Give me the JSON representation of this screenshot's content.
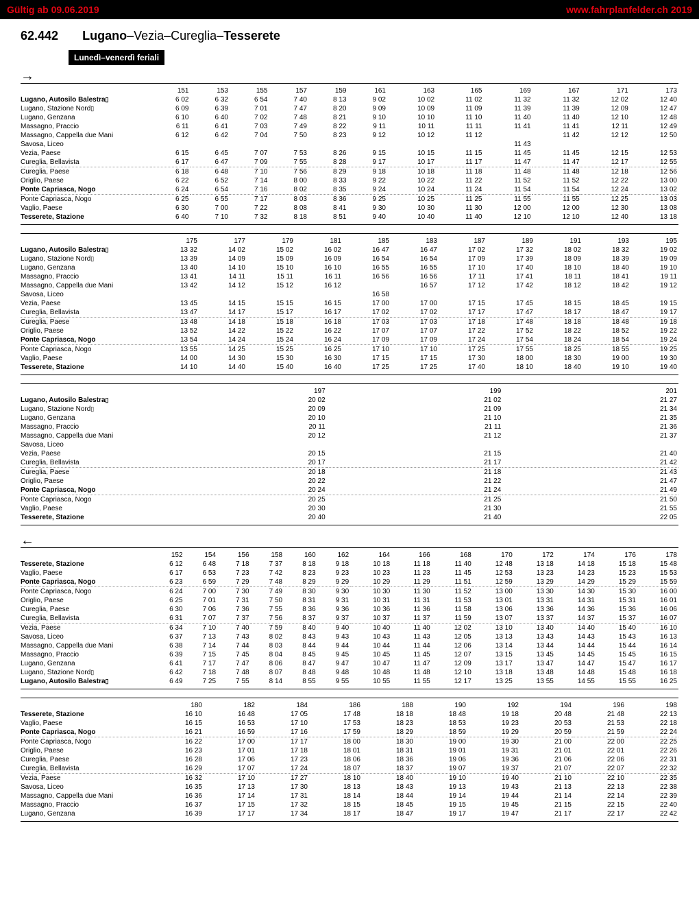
{
  "header": {
    "left_prefix": "Gültig ab ",
    "left_date": "09.06.2019",
    "right_prefix": "www.fahrplanfelder.ch ",
    "right_year": "2019"
  },
  "route": {
    "number": "62.442",
    "from": "Lugano",
    "mid": "–Vezia–Cureglia–",
    "to": "Tesserete"
  },
  "subheader": "Lunedì–venerdì feriali",
  "stops_fwd": [
    {
      "name": "Lugano, Autosilo Balestra",
      "bold": true,
      "note": "1"
    },
    {
      "name": "Lugano, Stazione Nord",
      "note": "4"
    },
    {
      "name": "Lugano, Genzana"
    },
    {
      "name": "Massagno, Praccio"
    },
    {
      "name": "Massagno, Cappella due Mani"
    },
    {
      "name": "Savosa, Liceo"
    },
    {
      "name": "Vezia, Paese"
    },
    {
      "name": "Cureglia, Bellavista"
    },
    {
      "name": "Cureglia, Paese",
      "dotted": true
    },
    {
      "name": "Origlio, Paese"
    },
    {
      "name": "Ponte Capriasca, Nogo",
      "bold": true
    },
    {
      "name": "Ponte Capriasca, Nogo",
      "dotted": true
    },
    {
      "name": "Vaglio, Paese"
    },
    {
      "name": "Tesserete, Stazione",
      "bold": true
    }
  ],
  "stops_bwd": [
    {
      "name": "Tesserete, Stazione",
      "bold": true
    },
    {
      "name": "Vaglio, Paese"
    },
    {
      "name": "Ponte Capriasca, Nogo",
      "bold": true
    },
    {
      "name": "Ponte Capriasca, Nogo",
      "dotted": true
    },
    {
      "name": "Origlio, Paese"
    },
    {
      "name": "Cureglia, Paese"
    },
    {
      "name": "Cureglia, Bellavista"
    },
    {
      "name": "Vezia, Paese",
      "dotted": true
    },
    {
      "name": "Savosa, Liceo"
    },
    {
      "name": "Massagno, Cappella due Mani"
    },
    {
      "name": "Massagno, Praccio"
    },
    {
      "name": "Lugano, Genzana"
    },
    {
      "name": "Lugano, Stazione Nord",
      "note": "4"
    },
    {
      "name": "Lugano, Autosilo Balestra",
      "bold": true,
      "note": "1"
    }
  ],
  "fwd_blocks": [
    {
      "trips": [
        "151",
        "153",
        "155",
        "157",
        "159",
        "161",
        "163",
        "165",
        "169",
        "167",
        "171",
        "173"
      ],
      "rows": [
        [
          "6 02",
          "6 32",
          "6 54",
          "7 40",
          "8 13",
          "9 02",
          "10 02",
          "11 02",
          "11 32",
          "11 32",
          "12 02",
          "12 40"
        ],
        [
          "6 09",
          "6 39",
          "7 01",
          "7 47",
          "8 20",
          "9 09",
          "10 09",
          "11 09",
          "11 39",
          "11 39",
          "12 09",
          "12 47"
        ],
        [
          "6 10",
          "6 40",
          "7 02",
          "7 48",
          "8 21",
          "9 10",
          "10 10",
          "11 10",
          "11 40",
          "11 40",
          "12 10",
          "12 48"
        ],
        [
          "6 11",
          "6 41",
          "7 03",
          "7 49",
          "8 22",
          "9 11",
          "10 11",
          "11 11",
          "11 41",
          "11 41",
          "12 11",
          "12 49"
        ],
        [
          "6 12",
          "6 42",
          "7 04",
          "7 50",
          "8 23",
          "9 12",
          "10 12",
          "11 12",
          "",
          "11 42",
          "12 12",
          "12 50"
        ],
        [
          "",
          "",
          "",
          "",
          "",
          "",
          "",
          "",
          "11 43",
          "",
          "",
          ""
        ],
        [
          "6 15",
          "6 45",
          "7 07",
          "7 53",
          "8 26",
          "9 15",
          "10 15",
          "11 15",
          "11 45",
          "11 45",
          "12 15",
          "12 53"
        ],
        [
          "6 17",
          "6 47",
          "7 09",
          "7 55",
          "8 28",
          "9 17",
          "10 17",
          "11 17",
          "11 47",
          "11 47",
          "12 17",
          "12 55"
        ],
        [
          "6 18",
          "6 48",
          "7 10",
          "7 56",
          "8 29",
          "9 18",
          "10 18",
          "11 18",
          "11 48",
          "11 48",
          "12 18",
          "12 56"
        ],
        [
          "6 22",
          "6 52",
          "7 14",
          "8 00",
          "8 33",
          "9 22",
          "10 22",
          "11 22",
          "11 52",
          "11 52",
          "12 22",
          "13 00"
        ],
        [
          "6 24",
          "6 54",
          "7 16",
          "8 02",
          "8 35",
          "9 24",
          "10 24",
          "11 24",
          "11 54",
          "11 54",
          "12 24",
          "13 02"
        ],
        [
          "6 25",
          "6 55",
          "7 17",
          "8 03",
          "8 36",
          "9 25",
          "10 25",
          "11 25",
          "11 55",
          "11 55",
          "12 25",
          "13 03"
        ],
        [
          "6 30",
          "7 00",
          "7 22",
          "8 08",
          "8 41",
          "9 30",
          "10 30",
          "11 30",
          "12 00",
          "12 00",
          "12 30",
          "13 08"
        ],
        [
          "6 40",
          "7 10",
          "7 32",
          "8 18",
          "8 51",
          "9 40",
          "10 40",
          "11 40",
          "12 10",
          "12 10",
          "12 40",
          "13 18"
        ]
      ],
      "marks": {
        "8": {
          "0": "10"
        },
        "9": {
          "0": "11"
        },
        "8b": {
          "13": "10"
        },
        "9b": {
          "13": "11"
        }
      }
    },
    {
      "trips": [
        "175",
        "177",
        "179",
        "181",
        "185",
        "183",
        "187",
        "189",
        "191",
        "193",
        "195"
      ],
      "rows": [
        [
          "13 32",
          "14 02",
          "15 02",
          "16 02",
          "16 47",
          "16 47",
          "17 02",
          "17 32",
          "18 02",
          "18 32",
          "19 02"
        ],
        [
          "13 39",
          "14 09",
          "15 09",
          "16 09",
          "16 54",
          "16 54",
          "17 09",
          "17 39",
          "18 09",
          "18 39",
          "19 09"
        ],
        [
          "13 40",
          "14 10",
          "15 10",
          "16 10",
          "16 55",
          "16 55",
          "17 10",
          "17 40",
          "18 10",
          "18 40",
          "19 10"
        ],
        [
          "13 41",
          "14 11",
          "15 11",
          "16 11",
          "16 56",
          "16 56",
          "17 11",
          "17 41",
          "18 11",
          "18 41",
          "19 11"
        ],
        [
          "13 42",
          "14 12",
          "15 12",
          "16 12",
          "",
          "16 57",
          "17 12",
          "17 42",
          "18 12",
          "18 42",
          "19 12"
        ],
        [
          "",
          "",
          "",
          "",
          "16 58",
          "",
          "",
          "",
          "",
          "",
          ""
        ],
        [
          "13 45",
          "14 15",
          "15 15",
          "16 15",
          "17 00",
          "17 00",
          "17 15",
          "17 45",
          "18 15",
          "18 45",
          "19 15"
        ],
        [
          "13 47",
          "14 17",
          "15 17",
          "16 17",
          "17 02",
          "17 02",
          "17 17",
          "17 47",
          "18 17",
          "18 47",
          "19 17"
        ],
        [
          "13 48",
          "14 18",
          "15 18",
          "16 18",
          "17 03",
          "17 03",
          "17 18",
          "17 48",
          "18 18",
          "18 48",
          "19 18"
        ],
        [
          "13 52",
          "14 22",
          "15 22",
          "16 22",
          "17 07",
          "17 07",
          "17 22",
          "17 52",
          "18 22",
          "18 52",
          "19 22"
        ],
        [
          "13 54",
          "14 24",
          "15 24",
          "16 24",
          "17 09",
          "17 09",
          "17 24",
          "17 54",
          "18 24",
          "18 54",
          "19 24"
        ],
        [
          "13 55",
          "14 25",
          "15 25",
          "16 25",
          "17 10",
          "17 10",
          "17 25",
          "17 55",
          "18 25",
          "18 55",
          "19 25"
        ],
        [
          "14 00",
          "14 30",
          "15 30",
          "16 30",
          "17 15",
          "17 15",
          "17 30",
          "18 00",
          "18 30",
          "19 00",
          "19 30"
        ],
        [
          "14 10",
          "14 40",
          "15 40",
          "16 40",
          "17 25",
          "17 25",
          "17 40",
          "18 10",
          "18 40",
          "19 10",
          "19 40"
        ]
      ]
    },
    {
      "trips": [
        "197",
        "199",
        "201"
      ],
      "rows": [
        [
          "20 02",
          "21 02",
          "21 27"
        ],
        [
          "20 09",
          "21 09",
          "21 34"
        ],
        [
          "20 10",
          "21 10",
          "21 35"
        ],
        [
          "20 11",
          "21 11",
          "21 36"
        ],
        [
          "20 12",
          "21 12",
          "21 37"
        ],
        [
          "",
          "",
          ""
        ],
        [
          "20 15",
          "21 15",
          "21 40"
        ],
        [
          "20 17",
          "21 17",
          "21 42"
        ],
        [
          "20 18",
          "21 18",
          "21 43"
        ],
        [
          "20 22",
          "21 22",
          "21 47"
        ],
        [
          "20 24",
          "21 24",
          "21 49"
        ],
        [
          "20 25",
          "21 25",
          "21 50"
        ],
        [
          "20 30",
          "21 30",
          "21 55"
        ],
        [
          "20 40",
          "21 40",
          "22 05"
        ]
      ]
    }
  ],
  "bwd_blocks": [
    {
      "trips": [
        "152",
        "154",
        "156",
        "158",
        "160",
        "162",
        "164",
        "166",
        "168",
        "170",
        "172",
        "174",
        "176",
        "178"
      ],
      "rows": [
        [
          "6 12",
          "6 48",
          "7 18",
          "7 37",
          "8 18",
          "9 18",
          "10 18",
          "11 18",
          "11 40",
          "12 48",
          "13 18",
          "14 18",
          "15 18",
          "15 48"
        ],
        [
          "6 17",
          "6 53",
          "7 23",
          "7 42",
          "8 23",
          "9 23",
          "10 23",
          "11 23",
          "11 45",
          "12 53",
          "13 23",
          "14 23",
          "15 23",
          "15 53"
        ],
        [
          "6 23",
          "6 59",
          "7 29",
          "7 48",
          "8 29",
          "9 29",
          "10 29",
          "11 29",
          "11 51",
          "12 59",
          "13 29",
          "14 29",
          "15 29",
          "15 59"
        ],
        [
          "6 24",
          "7 00",
          "7 30",
          "7 49",
          "8 30",
          "9 30",
          "10 30",
          "11 30",
          "11 52",
          "13 00",
          "13 30",
          "14 30",
          "15 30",
          "16 00"
        ],
        [
          "6 25",
          "7 01",
          "7 31",
          "7 50",
          "8 31",
          "9 31",
          "10 31",
          "11 31",
          "11 53",
          "13 01",
          "13 31",
          "14 31",
          "15 31",
          "16 01"
        ],
        [
          "6 30",
          "7 06",
          "7 36",
          "7 55",
          "8 36",
          "9 36",
          "10 36",
          "11 36",
          "11 58",
          "13 06",
          "13 36",
          "14 36",
          "15 36",
          "16 06"
        ],
        [
          "6 31",
          "7 07",
          "7 37",
          "7 56",
          "8 37",
          "9 37",
          "10 37",
          "11 37",
          "11 59",
          "13 07",
          "13 37",
          "14 37",
          "15 37",
          "16 07"
        ],
        [
          "6 34",
          "7 10",
          "7 40",
          "7 59",
          "8 40",
          "9 40",
          "10 40",
          "11 40",
          "12 02",
          "13 10",
          "13 40",
          "14 40",
          "15 40",
          "16 10"
        ],
        [
          "6 37",
          "7 13",
          "7 43",
          "8 02",
          "8 43",
          "9 43",
          "10 43",
          "11 43",
          "12 05",
          "13 13",
          "13 43",
          "14 43",
          "15 43",
          "16 13"
        ],
        [
          "6 38",
          "7 14",
          "7 44",
          "8 03",
          "8 44",
          "9 44",
          "10 44",
          "11 44",
          "12 06",
          "13 14",
          "13 44",
          "14 44",
          "15 44",
          "16 14"
        ],
        [
          "6 39",
          "7 15",
          "7 45",
          "8 04",
          "8 45",
          "9 45",
          "10 45",
          "11 45",
          "12 07",
          "13 15",
          "13 45",
          "14 45",
          "15 45",
          "16 15"
        ],
        [
          "6 41",
          "7 17",
          "7 47",
          "8 06",
          "8 47",
          "9 47",
          "10 47",
          "11 47",
          "12 09",
          "13 17",
          "13 47",
          "14 47",
          "15 47",
          "16 17"
        ],
        [
          "6 42",
          "7 18",
          "7 48",
          "8 07",
          "8 48",
          "9 48",
          "10 48",
          "11 48",
          "12 10",
          "13 18",
          "13 48",
          "14 48",
          "15 48",
          "16 18"
        ],
        [
          "6 49",
          "7 25",
          "7 55",
          "8 14",
          "8 55",
          "9 55",
          "10 55",
          "11 55",
          "12 17",
          "13 25",
          "13 55",
          "14 55",
          "15 55",
          "16 25"
        ]
      ]
    },
    {
      "trips": [
        "180",
        "182",
        "184",
        "186",
        "188",
        "190",
        "192",
        "194",
        "196",
        "198"
      ],
      "rows": [
        [
          "16 10",
          "16 48",
          "17 05",
          "17 48",
          "18 18",
          "18 48",
          "19 18",
          "20 48",
          "21 48",
          "22 13"
        ],
        [
          "16 15",
          "16 53",
          "17 10",
          "17 53",
          "18 23",
          "18 53",
          "19 23",
          "20 53",
          "21 53",
          "22 18"
        ],
        [
          "16 21",
          "16 59",
          "17 16",
          "17 59",
          "18 29",
          "18 59",
          "19 29",
          "20 59",
          "21 59",
          "22 24"
        ],
        [
          "16 22",
          "17 00",
          "17 17",
          "18 00",
          "18 30",
          "19 00",
          "19 30",
          "21 00",
          "22 00",
          "22 25"
        ],
        [
          "16 23",
          "17 01",
          "17 18",
          "18 01",
          "18 31",
          "19 01",
          "19 31",
          "21 01",
          "22 01",
          "22 26"
        ],
        [
          "16 28",
          "17 06",
          "17 23",
          "18 06",
          "18 36",
          "19 06",
          "19 36",
          "21 06",
          "22 06",
          "22 31"
        ],
        [
          "16 29",
          "17 07",
          "17 24",
          "18 07",
          "18 37",
          "19 07",
          "19 37",
          "21 07",
          "22 07",
          "22 32"
        ],
        [
          "16 32",
          "17 10",
          "17 27",
          "18 10",
          "18 40",
          "19 10",
          "19 40",
          "21 10",
          "22 10",
          "22 35"
        ],
        [
          "16 35",
          "17 13",
          "17 30",
          "18 13",
          "18 43",
          "19 13",
          "19 43",
          "21 13",
          "22 13",
          "22 38"
        ],
        [
          "16 36",
          "17 14",
          "17 31",
          "18 14",
          "18 44",
          "19 14",
          "19 44",
          "21 14",
          "22 14",
          "22 39"
        ],
        [
          "16 37",
          "17 15",
          "17 32",
          "18 15",
          "18 45",
          "19 15",
          "19 45",
          "21 15",
          "22 15",
          "22 40"
        ],
        [
          "16 39",
          "17 17",
          "17 34",
          "18 17",
          "18 47",
          "19 17",
          "19 47",
          "21 17",
          "22 17",
          "22 42"
        ]
      ],
      "short": true
    }
  ]
}
